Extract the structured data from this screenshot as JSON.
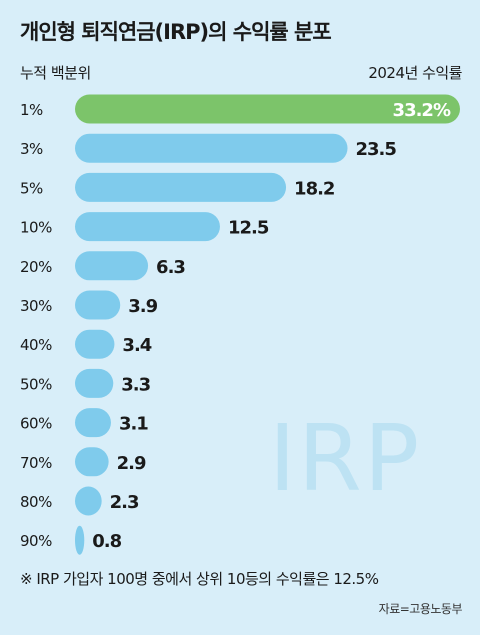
{
  "chart_data": {
    "type": "bar",
    "orientation": "horizontal",
    "title": "개인형 퇴직연금(IRP)의 수익률 분포",
    "xlabel": "2024년 수익률",
    "ylabel": "누적 백분위",
    "categories": [
      "1%",
      "3%",
      "5%",
      "10%",
      "20%",
      "30%",
      "40%",
      "50%",
      "60%",
      "70%",
      "80%",
      "90%"
    ],
    "values": [
      33.2,
      23.5,
      18.2,
      12.5,
      6.3,
      3.9,
      3.4,
      3.3,
      3.1,
      2.9,
      2.3,
      0.8
    ],
    "value_labels": [
      "33.2%",
      "23.5",
      "18.2",
      "12.5",
      "6.3",
      "3.9",
      "3.4",
      "3.3",
      "3.1",
      "2.9",
      "2.3",
      "0.8"
    ],
    "highlight_index": 0,
    "watermark": "IRP",
    "note": "※ IRP 가입자 100명 중에서 상위 10등의 수익률은 12.5%",
    "source": "자료=고용노동부",
    "grid": false,
    "legend": "none"
  },
  "colors": {
    "background": "#d8eef9",
    "bar": "#7fcbec",
    "highlight_bar": "#7cc46a",
    "watermark": "#bde2f3",
    "text": "#1a1a1a",
    "highlight_text": "#ffffff"
  }
}
